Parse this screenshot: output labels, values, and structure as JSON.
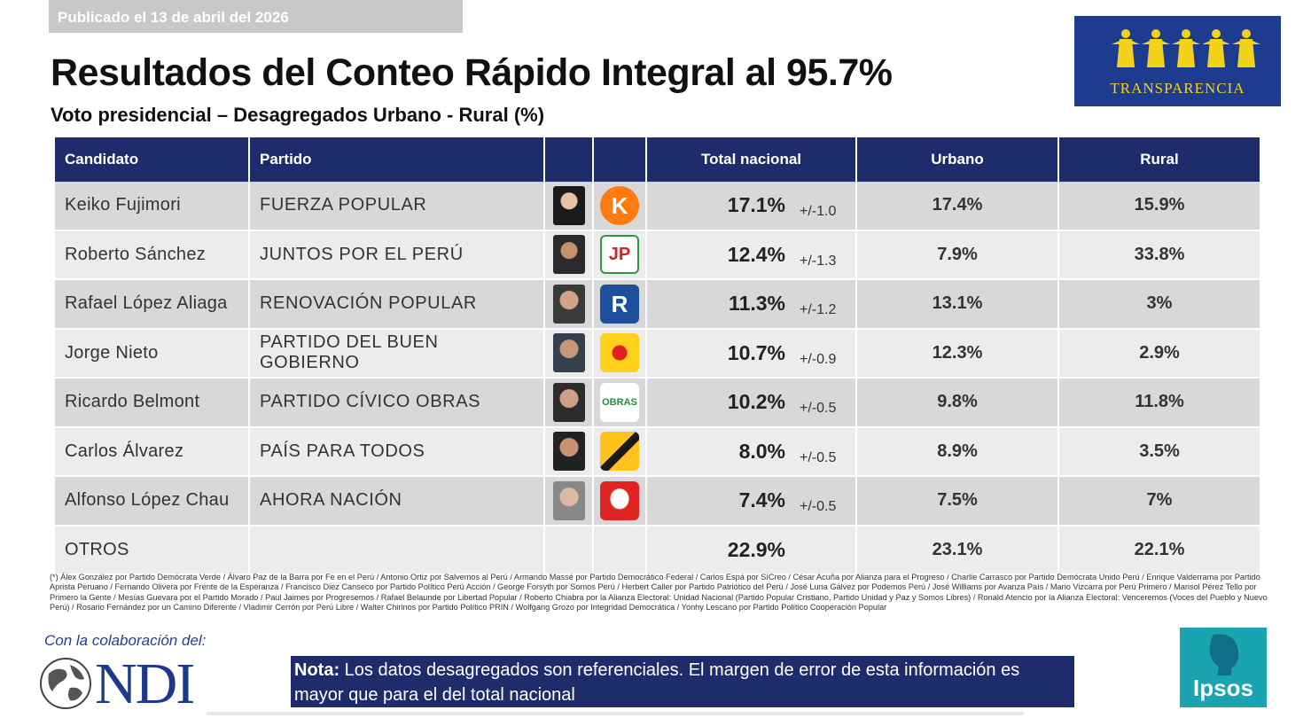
{
  "published": "Publicado el 13 de abril del 2026",
  "title": "Resultados del Conteo Rápido Integral al 95.7%",
  "subtitle": "Voto presidencial – Desagregados Urbano - Rural (%)",
  "brand_logo": "TRANSPARENCIA",
  "colors": {
    "header_navy": "#1f2c6b",
    "row_odd": "#d8d8d8",
    "row_even": "#ececec",
    "transparencia_blue": "#1d3c8f",
    "transparencia_yellow": "#f2d21b",
    "ipsos_teal": "#1aa3b0"
  },
  "table": {
    "headers": {
      "candidate": "Candidato",
      "party": "Partido",
      "total": "Total nacional",
      "urban": "Urbano",
      "rural": "Rural"
    },
    "rows": [
      {
        "candidate": "Keiko Fujimori",
        "party": "FUERZA POPULAR",
        "total": "17.1%",
        "margin": "+/-1.0",
        "urban": "17.4%",
        "rural": "15.9%",
        "photo_icon": "candidate-photo-icon",
        "logo_icon": "fuerza-popular-k-icon",
        "logo_text": "K"
      },
      {
        "candidate": "Roberto Sánchez",
        "party": "JUNTOS POR EL PERÚ",
        "total": "12.4%",
        "margin": "+/-1.3",
        "urban": "7.9%",
        "rural": "33.8%",
        "photo_icon": "candidate-photo-icon",
        "logo_icon": "juntos-por-el-peru-jp-icon",
        "logo_text": "JP"
      },
      {
        "candidate": "Rafael López Aliaga",
        "party": "RENOVACIÓN POPULAR",
        "total": "11.3%",
        "margin": "+/-1.2",
        "urban": "13.1%",
        "rural": "3%",
        "photo_icon": "candidate-photo-icon",
        "logo_icon": "renovacion-popular-r-icon",
        "logo_text": "R"
      },
      {
        "candidate": "Jorge Nieto",
        "party": "PARTIDO DEL BUEN GOBIERNO",
        "total": "10.7%",
        "margin": "+/-0.9",
        "urban": "12.3%",
        "rural": "2.9%",
        "photo_icon": "candidate-photo-icon",
        "logo_icon": "buen-gobierno-sun-icon",
        "logo_text": ""
      },
      {
        "candidate": "Ricardo Belmont",
        "party": "PARTIDO CÍVICO OBRAS",
        "total": "10.2%",
        "margin": "+/-0.5",
        "urban": "9.8%",
        "rural": "11.8%",
        "photo_icon": "candidate-photo-icon",
        "logo_icon": "obras-logo-icon",
        "logo_text": "OBRAS"
      },
      {
        "candidate": "Carlos Álvarez",
        "party": "PAÍS PARA TODOS",
        "total": "8.0%",
        "margin": "+/-0.5",
        "urban": "8.9%",
        "rural": "3.5%",
        "photo_icon": "candidate-photo-icon",
        "logo_icon": "pais-para-todos-road-icon",
        "logo_text": ""
      },
      {
        "candidate": "Alfonso López Chau",
        "party": "AHORA NACIÓN",
        "total": "7.4%",
        "margin": "+/-0.5",
        "urban": "7.5%",
        "rural": "7%",
        "photo_icon": "candidate-photo-icon",
        "logo_icon": "ahora-nacion-helmet-icon",
        "logo_text": ""
      }
    ],
    "others": {
      "label": "OTROS",
      "total": "22.9%",
      "urban": "23.1%",
      "rural": "22.1%"
    }
  },
  "footnote": "(*) Álex González por Partido Demócrata Verde / Álvaro Paz de la Barra por Fe en el Perú / Antonio Ortiz por Salvemos al Perú / Armando Massé por Partido Democrático Federal / Carlos Espá por SíCreo / César Acuña por Alianza para el Progreso / Charlie Carrasco por Partido Demócrata Unido Perú / Enrique Valderrama por Partido Aprista Peruano / Fernando Olivera por Frente de la Esperanza / Francisco Diez Canseco por Partido Político Perú Acción / George Forsyth por Somos Perú / Herbert Caller por Partido Patriótico del Perú / José Luna Gálvez por Podemos Perú / José Williams por Avanza País / Mario Vizcarra por Perú Primero / Marisol Pérez Tello por Primero la Gente / Mesías Guevara por el Partido Morado / Paul Jaimes por Progresemos / Rafael Belaunde por Libertad Popular / Roberto Chiabra por la Alianza Electoral: Unidad Nacional (Partido Popular Cristiano, Partido Unidad y Paz y Somos Libres) / Ronald Atencio por la Alianza Electoral: Venceremos (Voces del Pueblo y Nuevo Perú) / Rosario Fernández por un Camino Diferente / Vladimir Cerrón por Perú Libre / Walter Chirinos por Partido Político PRIN / Wolfgang Grozo por Integridad Democrática / Yonhy Lescano por Partido Político Cooperación Popular",
  "collaboration": "Con la colaboración del:",
  "ndi_logo": "NDI",
  "note": {
    "label": "Nota:",
    "text": " Los datos desagregados son referenciales. El margen de error de esta información es mayor que para el del total nacional"
  },
  "ipsos_logo": "Ipsos"
}
